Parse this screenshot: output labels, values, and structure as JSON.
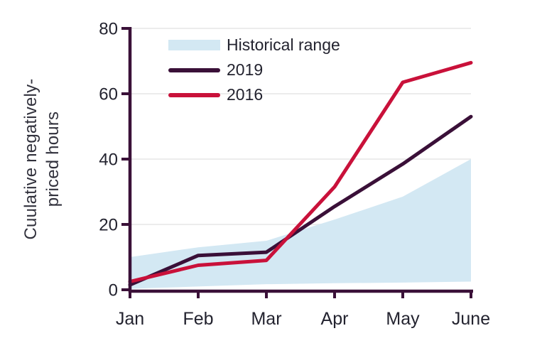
{
  "theme": {
    "text_color": "#23232F",
    "ylabel_color": "#31313C",
    "axis_color": "#3A1038",
    "grid_color": "#ECECEC",
    "background": "#FFFFFF"
  },
  "chart_data": {
    "type": "line",
    "title": "",
    "xlabel": "",
    "ylabel": "Cuulative negatively-priced hours",
    "ylabel_lines": [
      "Cuulative negatively-",
      "priced hours"
    ],
    "categories": [
      "Jan",
      "Feb",
      "Mar",
      "Apr",
      "May",
      "June"
    ],
    "yticks": [
      0,
      20,
      40,
      60,
      80
    ],
    "ylim": [
      0,
      80
    ],
    "grid": "horizontal",
    "legend_position": "inside-top-left",
    "band": {
      "name": "Historical range",
      "color": "#D3E8F3",
      "top": [
        10,
        13,
        15,
        21.5,
        28.5,
        40
      ],
      "bottom": [
        0.3,
        1,
        1.7,
        2,
        2.2,
        2.5
      ]
    },
    "series": [
      {
        "name": "2019",
        "color": "#3A1038",
        "values": [
          1.5,
          10.5,
          11.5,
          25.5,
          38.5,
          53
        ]
      },
      {
        "name": "2016",
        "color": "#C9113A",
        "values": [
          2.5,
          7.5,
          9,
          31.5,
          63.5,
          69.5
        ]
      }
    ]
  }
}
